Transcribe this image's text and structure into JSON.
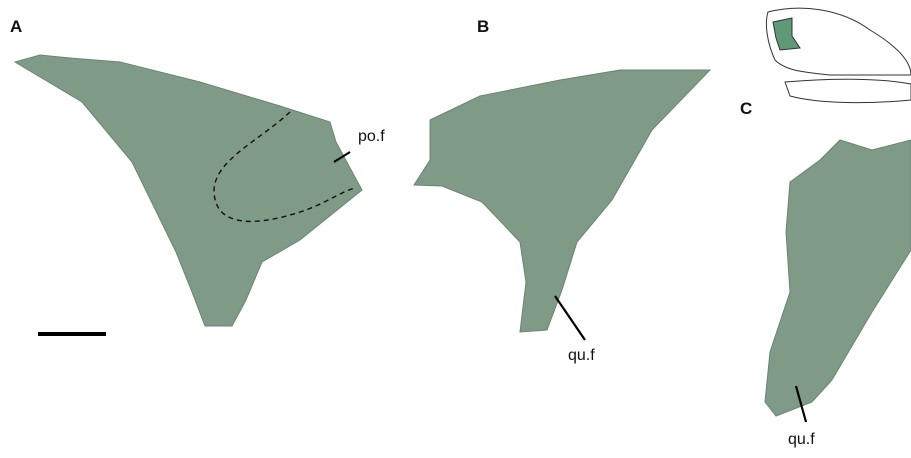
{
  "panels": [
    {
      "label": "A",
      "annotations": [
        "po.f"
      ]
    },
    {
      "label": "B",
      "annotations": [
        "qu.f"
      ]
    },
    {
      "label": "C",
      "annotations": [
        "qu.f"
      ]
    }
  ]
}
